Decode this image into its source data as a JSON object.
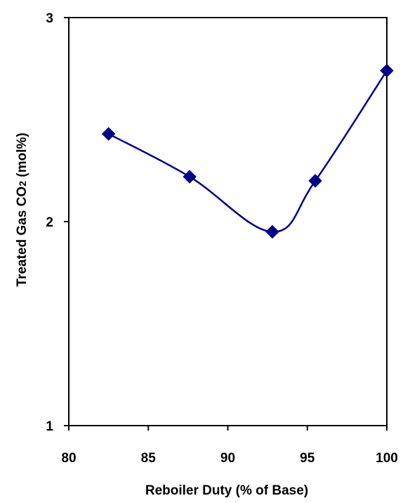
{
  "chart_data": {
    "type": "line",
    "title": "",
    "xlabel": "Reboiler Duty (% of Base)",
    "ylabel_main": "Treated Gas CO",
    "ylabel_sub": "2",
    "ylabel_tail": " (mol%)",
    "xlim": [
      80,
      100
    ],
    "ylim": [
      1,
      3
    ],
    "xticks": [
      80,
      85,
      90,
      95,
      100
    ],
    "yticks": [
      1,
      2,
      3
    ],
    "grid": false,
    "legend": "none",
    "series": [
      {
        "color": "#00008B",
        "marker": "diamond",
        "points": [
          {
            "x": 82.5,
            "y": 2.43
          },
          {
            "x": 87.6,
            "y": 2.22
          },
          {
            "x": 92.8,
            "y": 1.95
          },
          {
            "x": 95.5,
            "y": 2.2
          },
          {
            "x": 100.0,
            "y": 2.74
          }
        ]
      }
    ]
  }
}
